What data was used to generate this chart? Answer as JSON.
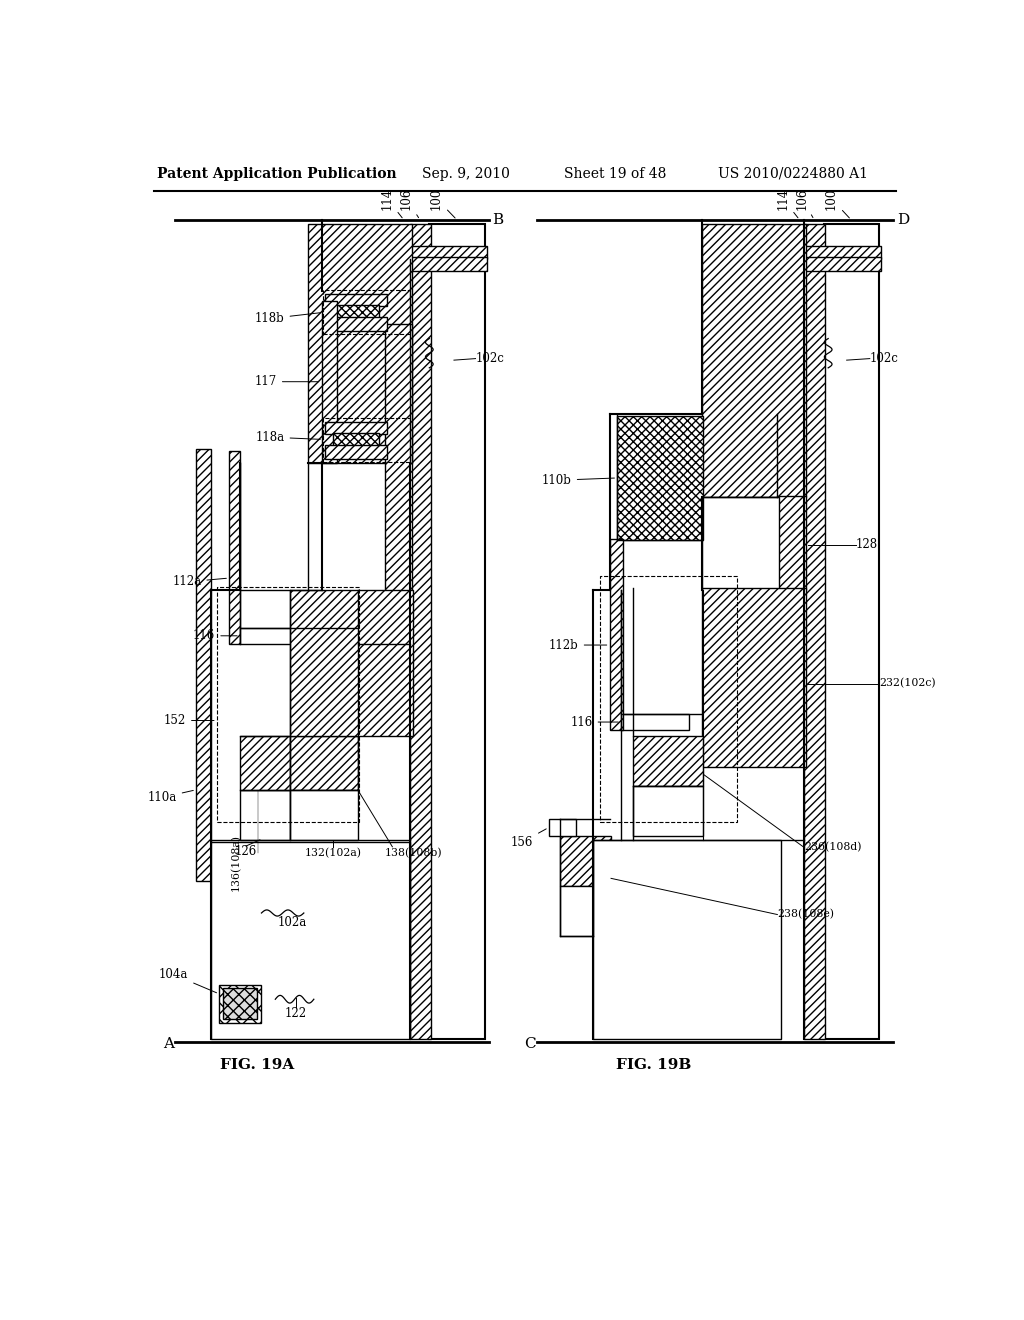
{
  "header_left": "Patent Application Publication",
  "header_center": "Sep. 9, 2010",
  "header_right_sheet": "Sheet 19 of 48",
  "header_right_pub": "US 2010/0224880 A1",
  "fig_a_label": "FIG. 19A",
  "fig_b_label": "FIG. 19B",
  "bg_color": "#ffffff",
  "line_color": "#000000"
}
